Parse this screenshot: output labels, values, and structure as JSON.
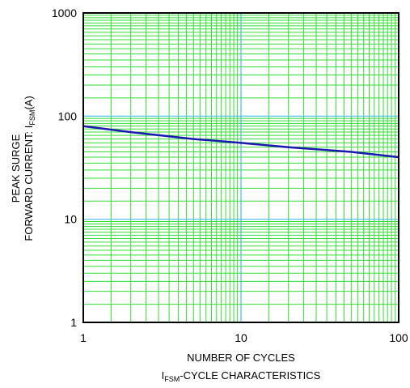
{
  "chart_data": {
    "type": "line",
    "title": "",
    "xlabel": "NUMBER OF CYCLES",
    "caption": {
      "prefix": "I",
      "sub": "FSM",
      "suffix": "-CYCLE CHARACTERISTICS"
    },
    "ylabel_line1": "PEAK SURGE",
    "ylabel_line2": {
      "prefix": "FORWARD CURRENT: I",
      "sub": "FSM",
      "suffix": "(A)"
    },
    "xscale": "log",
    "yscale": "log",
    "xlim": [
      1,
      100
    ],
    "ylim": [
      1,
      1000
    ],
    "x_ticks": [
      {
        "value": 1,
        "label": "1"
      },
      {
        "value": 10,
        "label": "10"
      },
      {
        "value": 100,
        "label": "100"
      }
    ],
    "y_ticks": [
      {
        "value": 1,
        "label": "1"
      },
      {
        "value": 10,
        "label": "10"
      },
      {
        "value": 100,
        "label": "100"
      },
      {
        "value": 1000,
        "label": "1000"
      }
    ],
    "grid": true,
    "series": [
      {
        "x": [
          1,
          2,
          5,
          10,
          20,
          50,
          100
        ],
        "y": [
          80,
          70,
          60,
          55,
          50,
          45,
          40
        ]
      }
    ]
  },
  "colors": {
    "minor_grid": "#33dd33",
    "major_grid": "#44bbee",
    "line": "#1a1ab0",
    "frame": "#000000"
  }
}
